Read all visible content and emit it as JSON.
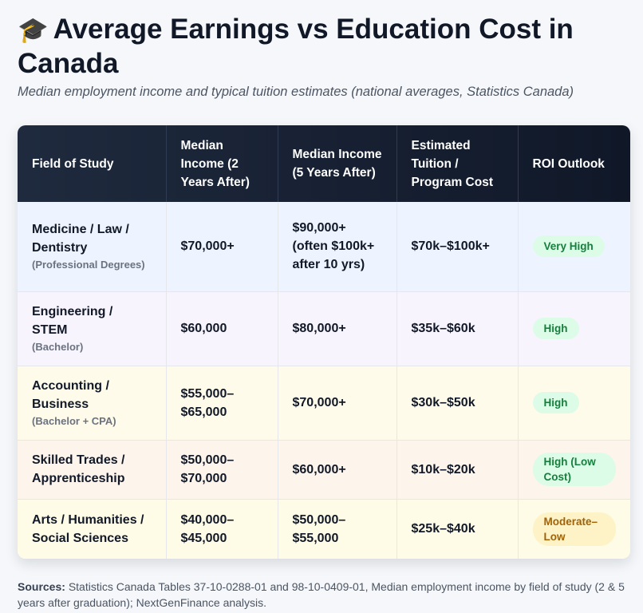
{
  "header": {
    "icon": "graduation-cap-icon",
    "icon_glyph": "🎓",
    "title": "Average Earnings vs Education Cost in Canada",
    "subtitle": "Median employment income and typical tuition estimates (national averages, Statistics Canada)"
  },
  "table": {
    "columns": [
      "Field of Study",
      "Median Income (2 Years After)",
      "Median Income (5 Years After)",
      "Estimated Tuition / Program Cost",
      "ROI Outlook"
    ],
    "rows": [
      {
        "field": "Medicine / Law / Dentistry",
        "field_note": "(Professional Degrees)",
        "income_2yr": "$70,000+",
        "income_5yr": "$90,000+ (often $100k+ after 10 yrs)",
        "tuition": "$70k–$100k+",
        "roi": "Very High",
        "roi_color": "#15803d"
      },
      {
        "field": "Engineering / STEM",
        "field_note": "(Bachelor)",
        "income_2yr": "$60,000",
        "income_5yr": "$80,000+",
        "tuition": "$35k–$60k",
        "roi": "High",
        "roi_color": "#15803d"
      },
      {
        "field": "Accounting / Business",
        "field_note": "(Bachelor + CPA)",
        "income_2yr": "$55,000–$65,000",
        "income_5yr": "$70,000+",
        "tuition": "$30k–$50k",
        "roi": "High",
        "roi_color": "#15803d"
      },
      {
        "field": "Skilled Trades / Apprenticeship",
        "field_note": "",
        "income_2yr": "$50,000–$70,000",
        "income_5yr": "$60,000+",
        "tuition": "$10k–$20k",
        "roi": "High (Low Cost)",
        "roi_color": "#15803d"
      },
      {
        "field": "Arts / Humanities / Social Sciences",
        "field_note": "",
        "income_2yr": "$40,000–$45,000",
        "income_5yr": "$50,000–$55,000",
        "tuition": "$25k–$40k",
        "roi": "Moderate–Low",
        "roi_color": "#a16207"
      }
    ]
  },
  "footer": {
    "sources_label": "Sources:",
    "sources_text": "Statistics Canada Tables 37-10-0288-01 and 98-10-0409-01, Median employment income by field of study (2 & 5 years after graduation); NextGenFinance analysis."
  }
}
